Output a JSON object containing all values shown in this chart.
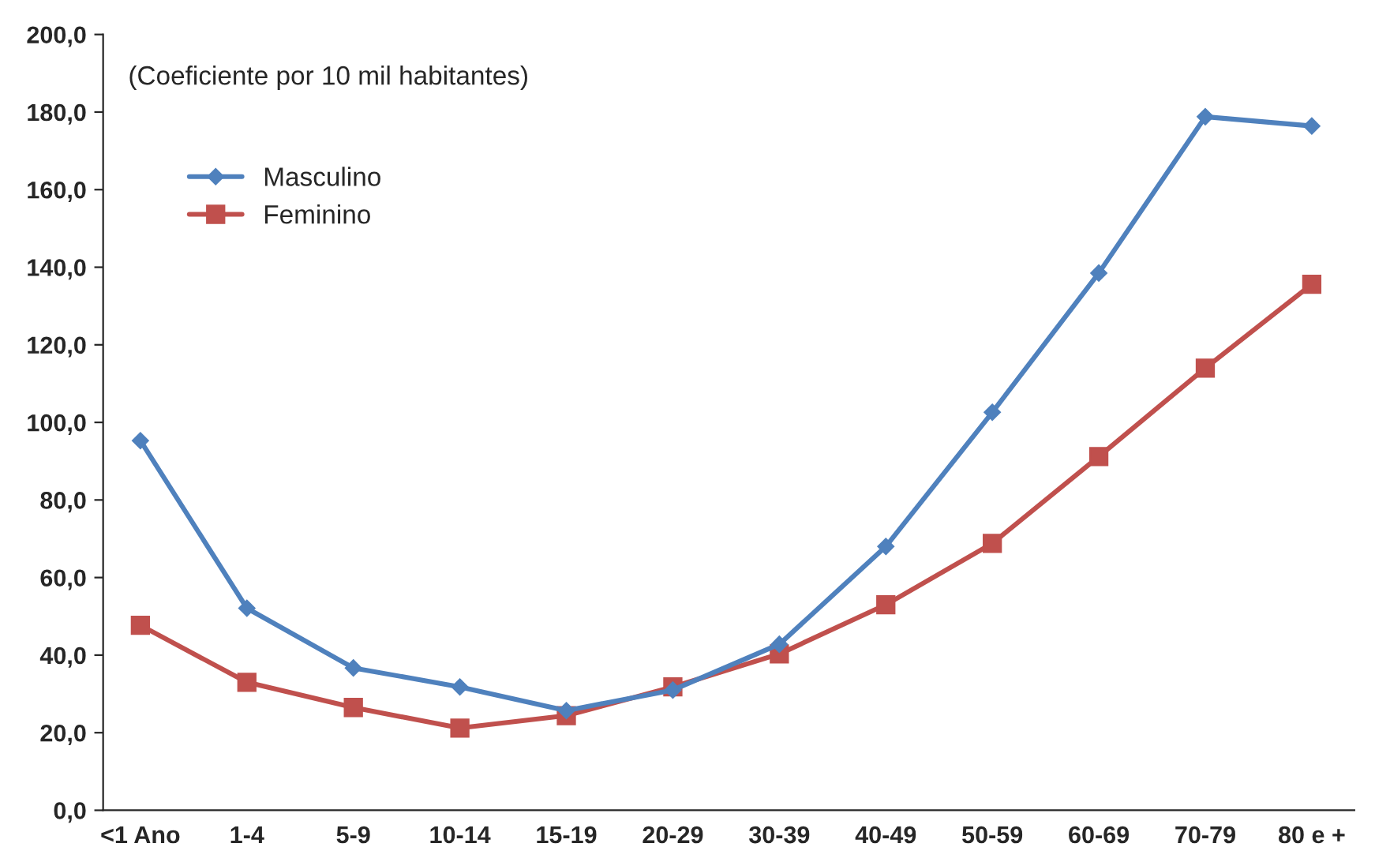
{
  "chart_data": {
    "type": "line",
    "annotations": [
      "(Coeficiente por 10 mil habitantes)"
    ],
    "categories": [
      "<1 Ano",
      "1-4",
      "5-9",
      "10-14",
      "15-19",
      "20-29",
      "30-39",
      "40-49",
      "50-59",
      "60-69",
      "70-79",
      "80 e +"
    ],
    "series": [
      {
        "name": "Masculino",
        "color": "#4f81bd",
        "marker": "diamond",
        "values": [
          95.3,
          52.1,
          36.7,
          31.8,
          25.7,
          31.0,
          42.8,
          68.0,
          102.6,
          138.5,
          178.8,
          176.4
        ]
      },
      {
        "name": "Feminino",
        "color": "#c0504d",
        "marker": "square",
        "values": [
          47.7,
          33.0,
          26.5,
          21.2,
          24.4,
          31.8,
          40.3,
          53.0,
          68.8,
          91.2,
          114.0,
          135.6
        ]
      }
    ],
    "ylim": [
      0,
      200
    ],
    "yticks": [
      {
        "value": 0,
        "label": "0,0"
      },
      {
        "value": 20,
        "label": "20,0"
      },
      {
        "value": 40,
        "label": "40,0"
      },
      {
        "value": 60,
        "label": "60,0"
      },
      {
        "value": 80,
        "label": "80,0"
      },
      {
        "value": 100,
        "label": "100,0"
      },
      {
        "value": 120,
        "label": "120,0"
      },
      {
        "value": 140,
        "label": "140,0"
      },
      {
        "value": 160,
        "label": "160,0"
      },
      {
        "value": 180,
        "label": "180,0"
      },
      {
        "value": 200,
        "label": "200,0"
      }
    ],
    "grid": false,
    "legend": "top left",
    "line_style": "solid"
  }
}
